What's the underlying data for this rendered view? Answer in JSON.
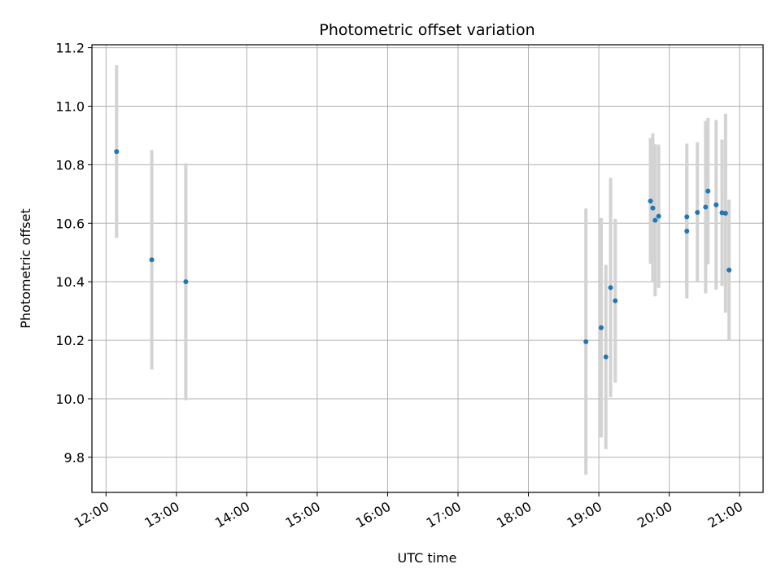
{
  "chart_data": {
    "type": "scatter",
    "title": "Photometric offset variation",
    "xlabel": "UTC time",
    "ylabel": "Photometric offset",
    "x_ticks": [
      "12:00",
      "13:00",
      "14:00",
      "15:00",
      "16:00",
      "17:00",
      "18:00",
      "19:00",
      "20:00",
      "21:00"
    ],
    "y_ticks": [
      "9.8",
      "10.0",
      "10.2",
      "10.4",
      "10.6",
      "10.8",
      "11.0",
      "11.2"
    ],
    "xlim": [
      "11:48",
      "21:20"
    ],
    "ylim": [
      9.68,
      11.21
    ],
    "grid": true,
    "colors": {
      "point": "#1f77b4",
      "errorbar": "#d3d3d3",
      "grid": "#b0b0b0"
    },
    "points": [
      {
        "x": "12:09",
        "y": 10.845,
        "err": 0.295
      },
      {
        "x": "12:39",
        "y": 10.475,
        "err": 0.375
      },
      {
        "x": "13:08",
        "y": 10.4,
        "err": 0.405
      },
      {
        "x": "18:49",
        "y": 10.195,
        "err": 0.455
      },
      {
        "x": "19:02",
        "y": 10.243,
        "err": 0.375
      },
      {
        "x": "19:06",
        "y": 10.143,
        "err": 0.315
      },
      {
        "x": "19:10",
        "y": 10.38,
        "err": 0.375
      },
      {
        "x": "19:14",
        "y": 10.335,
        "err": 0.28
      },
      {
        "x": "19:44",
        "y": 10.676,
        "err": 0.215
      },
      {
        "x": "19:46",
        "y": 10.652,
        "err": 0.255
      },
      {
        "x": "19:48",
        "y": 10.61,
        "err": 0.26
      },
      {
        "x": "19:51",
        "y": 10.624,
        "err": 0.245
      },
      {
        "x": "20:15",
        "y": 10.622,
        "err": 0.25
      },
      {
        "x": "20:15",
        "y": 10.573,
        "err": 0.23
      },
      {
        "x": "20:24",
        "y": 10.637,
        "err": 0.24
      },
      {
        "x": "20:31",
        "y": 10.655,
        "err": 0.295
      },
      {
        "x": "20:33",
        "y": 10.71,
        "err": 0.25
      },
      {
        "x": "20:40",
        "y": 10.663,
        "err": 0.29
      },
      {
        "x": "20:45",
        "y": 10.636,
        "err": 0.25
      },
      {
        "x": "20:48",
        "y": 10.634,
        "err": 0.34
      },
      {
        "x": "20:51",
        "y": 10.44,
        "err": 0.24
      }
    ]
  }
}
